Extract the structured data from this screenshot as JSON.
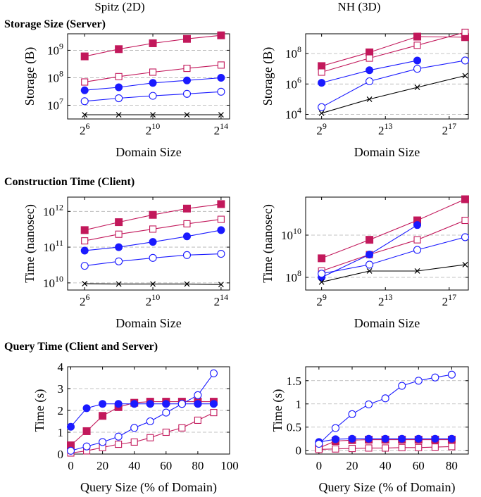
{
  "column_titles": [
    "Spitz (2D)",
    "NH (3D)"
  ],
  "section_titles": [
    "Storage Size (Server)",
    "Construction Time (Client)",
    "Query Time (Client and Server)"
  ],
  "colors": {
    "red": "#c2185b",
    "blue": "#1a1aff",
    "black": "#000000",
    "grid": "#b0b0b0"
  },
  "chart_data": [
    {
      "id": "storage-spitz",
      "type": "line",
      "scale": "log",
      "xlabel": "Domain Size",
      "ylabel": "Storage (B)",
      "xlim": [
        5,
        14.5
      ],
      "ylim_log10": [
        6.5,
        9.6
      ],
      "xticks": [
        {
          "v": 6,
          "b": "2",
          "e": "6"
        },
        {
          "v": 10,
          "b": "2",
          "e": "10"
        },
        {
          "v": 14,
          "b": "2",
          "e": "14"
        }
      ],
      "yticks": [
        {
          "v": 7,
          "b": "10",
          "e": "7"
        },
        {
          "v": 8,
          "b": "10",
          "e": "8"
        },
        {
          "v": 9,
          "b": "10",
          "e": "9"
        }
      ],
      "series": [
        {
          "color": "red",
          "marker": "square-filled",
          "x": [
            6,
            8,
            10,
            12,
            14
          ],
          "y": [
            600000000.0,
            1100000000.0,
            1800000000.0,
            2600000000.0,
            3500000000.0
          ]
        },
        {
          "color": "red",
          "marker": "square-open",
          "x": [
            6,
            8,
            10,
            12,
            14
          ],
          "y": [
            70000000.0,
            110000000.0,
            160000000.0,
            220000000.0,
            290000000.0
          ]
        },
        {
          "color": "blue",
          "marker": "circle-filled",
          "x": [
            6,
            8,
            10,
            12,
            14
          ],
          "y": [
            35000000.0,
            45000000.0,
            65000000.0,
            80000000.0,
            100000000.0
          ]
        },
        {
          "color": "blue",
          "marker": "circle-open",
          "x": [
            6,
            8,
            10,
            12,
            14
          ],
          "y": [
            14000000.0,
            18000000.0,
            22000000.0,
            26000000.0,
            31000000.0
          ]
        },
        {
          "color": "black",
          "marker": "cross",
          "x": [
            6,
            8,
            10,
            12,
            14
          ],
          "y": [
            4500000.0,
            4500000.0,
            4500000.0,
            4500000.0,
            4500000.0
          ]
        }
      ]
    },
    {
      "id": "storage-nh",
      "type": "line",
      "scale": "log",
      "xlabel": "Domain Size",
      "ylabel": "Storage (B)",
      "xlim": [
        8,
        18.2
      ],
      "ylim_log10": [
        3.7,
        9.3
      ],
      "xticks": [
        {
          "v": 9,
          "b": "2",
          "e": "9"
        },
        {
          "v": 13,
          "b": "2",
          "e": "13"
        },
        {
          "v": 17,
          "b": "2",
          "e": "17"
        }
      ],
      "yticks": [
        {
          "v": 4,
          "b": "10",
          "e": "4"
        },
        {
          "v": 6,
          "b": "10",
          "e": "6"
        },
        {
          "v": 8,
          "b": "10",
          "e": "8"
        }
      ],
      "series": [
        {
          "color": "red",
          "marker": "square-filled",
          "x": [
            9,
            12,
            15,
            18
          ],
          "y": [
            15000000.0,
            120000000.0,
            1300000000.0,
            1200000000.0
          ]
        },
        {
          "color": "red",
          "marker": "square-open",
          "x": [
            9,
            12,
            15,
            18
          ],
          "y": [
            6000000.0,
            50000000.0,
            350000000.0,
            2500000000.0
          ]
        },
        {
          "color": "blue",
          "marker": "circle-filled",
          "x": [
            9,
            12,
            15
          ],
          "y": [
            1200000.0,
            8000000.0,
            35000000.0
          ]
        },
        {
          "color": "blue",
          "marker": "circle-open",
          "x": [
            9,
            12,
            15,
            18
          ],
          "y": [
            30000.0,
            1500000.0,
            10000000.0,
            35000000.0
          ]
        },
        {
          "color": "black",
          "marker": "cross",
          "x": [
            9,
            12,
            15,
            18
          ],
          "y": [
            12000.0,
            100000.0,
            600000.0,
            3500000.0
          ]
        }
      ]
    },
    {
      "id": "construction-spitz",
      "type": "line",
      "scale": "log",
      "xlabel": "Domain Size",
      "ylabel": "Time (nanosec)",
      "xlim": [
        5,
        14.5
      ],
      "ylim_log10": [
        9.8,
        12.4
      ],
      "xticks": [
        {
          "v": 6,
          "b": "2",
          "e": "6"
        },
        {
          "v": 10,
          "b": "2",
          "e": "10"
        },
        {
          "v": 14,
          "b": "2",
          "e": "14"
        }
      ],
      "yticks": [
        {
          "v": 10,
          "b": "10",
          "e": "10"
        },
        {
          "v": 11,
          "b": "10",
          "e": "11"
        },
        {
          "v": 12,
          "b": "10",
          "e": "12"
        }
      ],
      "series": [
        {
          "color": "red",
          "marker": "square-filled",
          "x": [
            6,
            8,
            10,
            12,
            14
          ],
          "y": [
            300000000000.0,
            500000000000.0,
            800000000000.0,
            1200000000000.0,
            1600000000000.0
          ]
        },
        {
          "color": "red",
          "marker": "square-open",
          "x": [
            6,
            8,
            10,
            12,
            14
          ],
          "y": [
            150000000000.0,
            230000000000.0,
            320000000000.0,
            450000000000.0,
            600000000000.0
          ]
        },
        {
          "color": "blue",
          "marker": "circle-filled",
          "x": [
            6,
            8,
            10,
            12,
            14
          ],
          "y": [
            80000000000.0,
            100000000000.0,
            140000000000.0,
            200000000000.0,
            300000000000.0
          ]
        },
        {
          "color": "blue",
          "marker": "circle-open",
          "x": [
            6,
            8,
            10,
            12,
            14
          ],
          "y": [
            30000000000.0,
            40000000000.0,
            50000000000.0,
            60000000000.0,
            65000000000.0
          ]
        },
        {
          "color": "black",
          "marker": "cross",
          "x": [
            6,
            8,
            10,
            12,
            14
          ],
          "y": [
            9500000000.0,
            9300000000.0,
            9300000000.0,
            9300000000.0,
            9000000000.0
          ]
        }
      ]
    },
    {
      "id": "construction-nh",
      "type": "line",
      "scale": "log",
      "xlabel": "Domain Size",
      "ylabel": "Time (nanosec)",
      "xlim": [
        8,
        18.2
      ],
      "ylim_log10": [
        7.4,
        11.8
      ],
      "xticks": [
        {
          "v": 9,
          "b": "2",
          "e": "9"
        },
        {
          "v": 13,
          "b": "2",
          "e": "13"
        },
        {
          "v": 17,
          "b": "2",
          "e": "17"
        }
      ],
      "yticks": [
        {
          "v": 8,
          "b": "10",
          "e": "8"
        },
        {
          "v": 10,
          "b": "10",
          "e": "10"
        }
      ],
      "series": [
        {
          "color": "red",
          "marker": "square-filled",
          "x": [
            9,
            12,
            15,
            18
          ],
          "y": [
            800000000.0,
            6000000000.0,
            50000000000.0,
            500000000000.0
          ]
        },
        {
          "color": "red",
          "marker": "square-open",
          "x": [
            9,
            12,
            15,
            18
          ],
          "y": [
            200000000.0,
            1200000000.0,
            6000000000.0,
            50000000000.0
          ]
        },
        {
          "color": "blue",
          "marker": "circle-filled",
          "x": [
            9,
            12,
            15
          ],
          "y": [
            100000000.0,
            1200000000.0,
            30000000000.0
          ]
        },
        {
          "color": "blue",
          "marker": "circle-open",
          "x": [
            9,
            12,
            15,
            18
          ],
          "y": [
            150000000.0,
            400000000.0,
            2000000000.0,
            8000000000.0
          ]
        },
        {
          "color": "black",
          "marker": "cross",
          "x": [
            9,
            12,
            15,
            18
          ],
          "y": [
            60000000.0,
            200000000.0,
            200000000.0,
            400000000.0
          ]
        }
      ]
    },
    {
      "id": "query-spitz",
      "type": "line",
      "scale": "linear",
      "xlabel": "Query Size (% of Domain)",
      "ylabel": "Time (s)",
      "xlim": [
        -2,
        100
      ],
      "ylim": [
        0,
        4
      ],
      "xticks": [
        {
          "v": 0,
          "t": "0"
        },
        {
          "v": 20,
          "t": "20"
        },
        {
          "v": 40,
          "t": "40"
        },
        {
          "v": 60,
          "t": "60"
        },
        {
          "v": 80,
          "t": "80"
        },
        {
          "v": 100,
          "t": "100"
        }
      ],
      "yticks": [
        {
          "v": 0,
          "t": "0"
        },
        {
          "v": 1,
          "t": "1"
        },
        {
          "v": 2,
          "t": "2"
        },
        {
          "v": 3,
          "t": "3"
        },
        {
          "v": 4,
          "t": "4"
        }
      ],
      "series": [
        {
          "color": "red",
          "marker": "square-filled",
          "x": [
            0,
            10,
            20,
            30,
            40,
            50,
            60,
            70,
            80,
            90
          ],
          "y": [
            0.4,
            1.05,
            1.75,
            2.15,
            2.35,
            2.4,
            2.4,
            2.4,
            2.4,
            2.4
          ]
        },
        {
          "color": "red",
          "marker": "square-open",
          "x": [
            0,
            10,
            20,
            30,
            40,
            50,
            60,
            70,
            80,
            90
          ],
          "y": [
            0.05,
            0.15,
            0.3,
            0.45,
            0.55,
            0.75,
            1.0,
            1.2,
            1.55,
            1.9
          ]
        },
        {
          "color": "blue",
          "marker": "circle-filled",
          "x": [
            0,
            10,
            20,
            30,
            40,
            50,
            60,
            70,
            80,
            90
          ],
          "y": [
            1.25,
            2.1,
            2.3,
            2.3,
            2.3,
            2.3,
            2.3,
            2.3,
            2.3,
            2.3
          ]
        },
        {
          "color": "blue",
          "marker": "circle-open",
          "x": [
            0,
            10,
            20,
            30,
            40,
            50,
            60,
            70,
            80,
            90
          ],
          "y": [
            0.15,
            0.35,
            0.55,
            0.8,
            1.2,
            1.5,
            1.9,
            2.3,
            2.7,
            3.7
          ]
        }
      ]
    },
    {
      "id": "query-nh",
      "type": "line",
      "scale": "linear",
      "xlabel": "Query Size (% of Domain)",
      "ylabel": "Time (s)",
      "xlim": [
        -8,
        90
      ],
      "ylim": [
        -0.08,
        1.8
      ],
      "xticks": [
        {
          "v": 0,
          "t": "0"
        },
        {
          "v": 20,
          "t": "20"
        },
        {
          "v": 40,
          "t": "40"
        },
        {
          "v": 60,
          "t": "60"
        },
        {
          "v": 80,
          "t": "80"
        }
      ],
      "yticks": [
        {
          "v": 0,
          "t": "0"
        },
        {
          "v": 0.5,
          "t": "0.5"
        },
        {
          "v": 1,
          "t": "1"
        },
        {
          "v": 1.5,
          "t": "1.5"
        }
      ],
      "series": [
        {
          "color": "red",
          "marker": "square-filled",
          "x": [
            0,
            10,
            20,
            30,
            40,
            50,
            60,
            70,
            80
          ],
          "y": [
            0.05,
            0.2,
            0.22,
            0.23,
            0.23,
            0.23,
            0.23,
            0.23,
            0.23
          ]
        },
        {
          "color": "red",
          "marker": "square-open",
          "x": [
            0,
            10,
            20,
            30,
            40,
            50,
            60,
            70,
            80
          ],
          "y": [
            0.02,
            0.03,
            0.04,
            0.05,
            0.05,
            0.06,
            0.06,
            0.07,
            0.08
          ]
        },
        {
          "color": "blue",
          "marker": "circle-filled",
          "x": [
            0,
            10,
            20,
            30,
            40,
            50,
            60,
            70,
            80
          ],
          "y": [
            0.18,
            0.24,
            0.25,
            0.25,
            0.25,
            0.25,
            0.25,
            0.25,
            0.25
          ]
        },
        {
          "color": "blue",
          "marker": "circle-open",
          "x": [
            0,
            10,
            20,
            30,
            40,
            50,
            60,
            70,
            80
          ],
          "y": [
            0.14,
            0.48,
            0.78,
            0.99,
            1.12,
            1.39,
            1.5,
            1.57,
            1.63
          ]
        }
      ]
    }
  ]
}
